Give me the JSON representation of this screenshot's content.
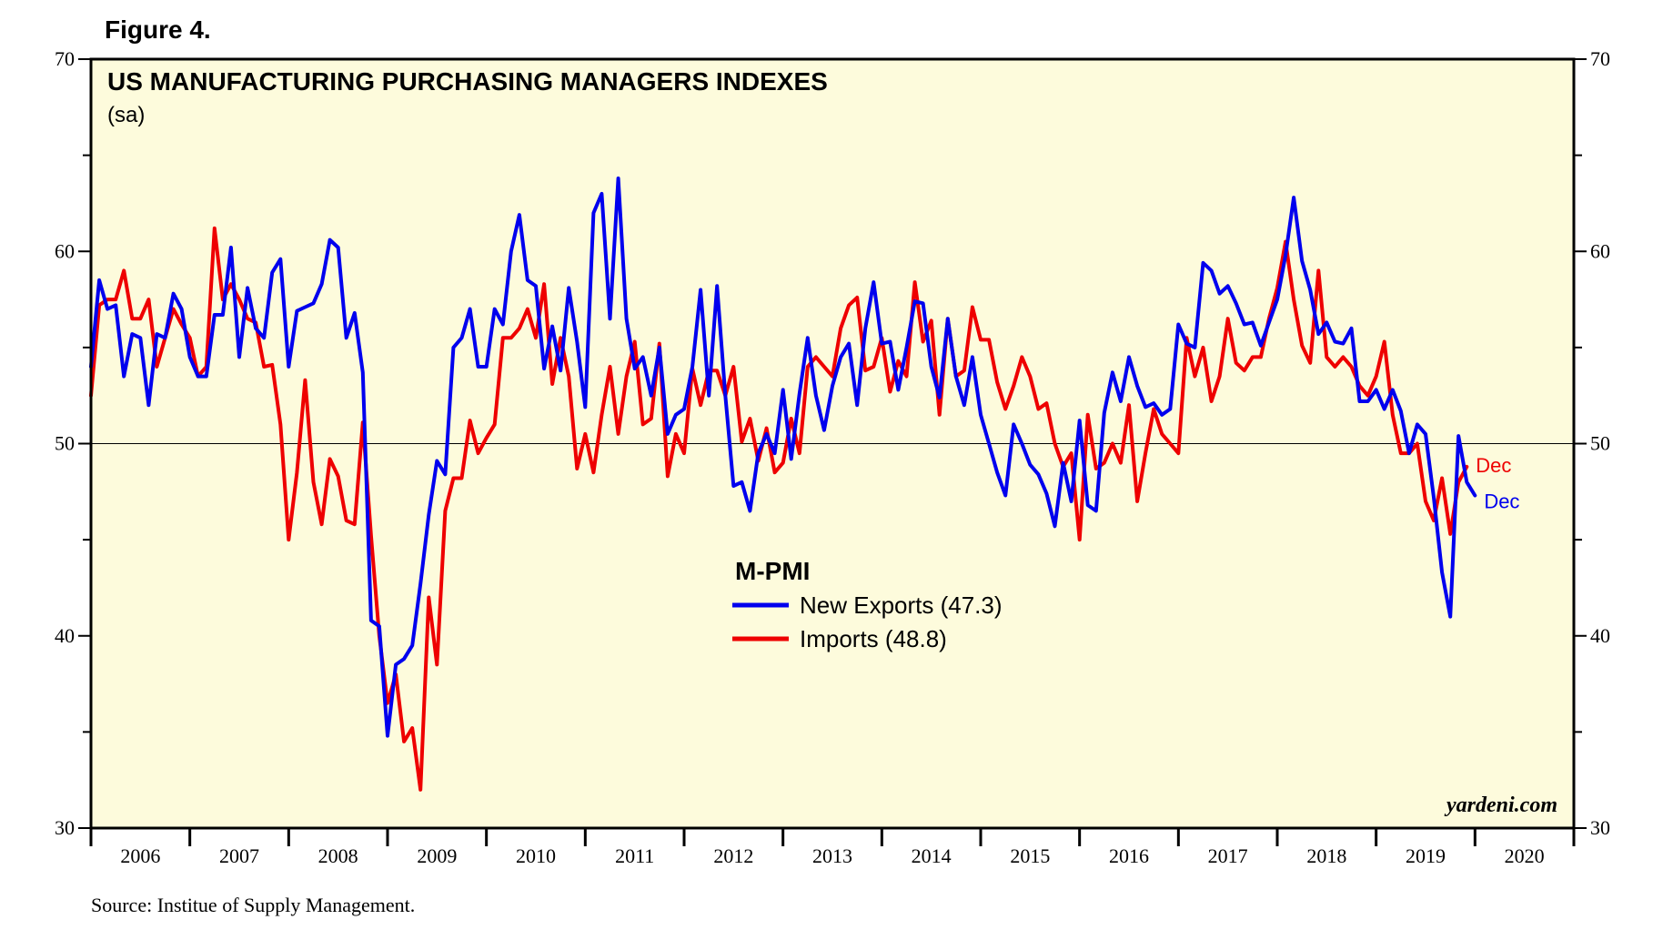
{
  "figure_label": "Figure 4.",
  "source_note": "Source: Institue of Supply Management.",
  "watermark": "yardeni.com",
  "colors": {
    "background": "#fdfbdc",
    "new_exports": "#0000ee",
    "imports": "#ee0000",
    "axis": "#000000"
  },
  "chart_data": {
    "type": "line",
    "title": "US MANUFACTURING PURCHASING MANAGERS INDEXES",
    "subtitle": "(sa)",
    "xlabel": "",
    "ylabel": "",
    "ylim": [
      30,
      70
    ],
    "xlim": [
      2006.0,
      2021.0
    ],
    "y_ticks": [
      30,
      40,
      50,
      60,
      70
    ],
    "year_labels": [
      "2006",
      "2007",
      "2008",
      "2009",
      "2010",
      "2011",
      "2012",
      "2013",
      "2014",
      "2015",
      "2016",
      "2017",
      "2018",
      "2019",
      "2020"
    ],
    "reference_line": 50,
    "grid": false,
    "legend": {
      "title": "M-PMI",
      "position": "center",
      "entries": [
        "New Exports (47.3)",
        "Imports (48.8)"
      ]
    },
    "end_labels": [
      "Dec",
      "Dec"
    ],
    "series": [
      {
        "name": "New Exports",
        "color": "#0000ee",
        "x_start": 2006.0,
        "x_step": 0.083333,
        "values": [
          54.0,
          58.5,
          57.0,
          57.2,
          53.5,
          55.7,
          55.5,
          52.0,
          55.7,
          55.5,
          57.8,
          57.0,
          54.5,
          53.5,
          53.5,
          56.7,
          56.7,
          60.2,
          54.5,
          58.1,
          56.0,
          55.5,
          58.9,
          59.6,
          54.0,
          56.9,
          57.1,
          57.3,
          58.3,
          60.6,
          60.2,
          55.5,
          56.8,
          53.7,
          40.8,
          40.5,
          34.8,
          38.5,
          38.8,
          39.5,
          42.7,
          46.3,
          49.1,
          48.4,
          55.0,
          55.5,
          57.0,
          54.0,
          54.0,
          57.0,
          56.2,
          60.0,
          61.9,
          58.5,
          58.2,
          53.9,
          56.1,
          53.8,
          58.1,
          55.3,
          51.9,
          62.0,
          63.0,
          56.5,
          63.8,
          56.5,
          53.9,
          54.5,
          52.5,
          55.0,
          50.5,
          51.5,
          51.8,
          54.0,
          58.0,
          52.5,
          58.2,
          52.5,
          47.8,
          48.0,
          46.5,
          49.5,
          50.5,
          49.5,
          52.8,
          49.2,
          52.6,
          55.5,
          52.5,
          50.7,
          53.0,
          54.5,
          55.2,
          52.0,
          56.0,
          58.4,
          55.2,
          55.3,
          52.8,
          55.0,
          57.4,
          57.3,
          54.0,
          52.4,
          56.5,
          53.5,
          52.0,
          54.5,
          51.5,
          50.0,
          48.5,
          47.3,
          51.0,
          50.0,
          48.9,
          48.4,
          47.4,
          45.7,
          49.0,
          47.0,
          51.2,
          46.8,
          46.5,
          51.6,
          53.7,
          52.2,
          54.5,
          53.0,
          51.9,
          52.1,
          51.5,
          51.8,
          56.2,
          55.2,
          55.0,
          59.4,
          59.0,
          57.8,
          58.2,
          57.3,
          56.2,
          56.3,
          55.1,
          56.3,
          57.5,
          59.8,
          62.8,
          59.5,
          58.0,
          55.7,
          56.3,
          55.3,
          55.2,
          56.0,
          52.2,
          52.2,
          52.8,
          51.8,
          52.8,
          51.7,
          49.5,
          51.0,
          50.5,
          47.2,
          43.3,
          41.0,
          50.4,
          48.0,
          47.3
        ]
      },
      {
        "name": "Imports",
        "color": "#ee0000",
        "x_start": 2006.0,
        "x_step": 0.083333,
        "values": [
          52.5,
          57.2,
          57.5,
          57.5,
          59.0,
          56.5,
          56.5,
          57.5,
          54.0,
          55.5,
          57.0,
          56.2,
          55.5,
          53.5,
          54.0,
          61.2,
          57.5,
          58.3,
          57.5,
          56.5,
          56.3,
          54.0,
          54.1,
          51.0,
          45.0,
          48.5,
          53.3,
          48.0,
          45.8,
          49.2,
          48.3,
          46.0,
          45.8,
          51.1,
          45.2,
          40.0,
          36.5,
          38.0,
          34.5,
          35.2,
          32.0,
          42.0,
          38.5,
          46.5,
          48.2,
          48.2,
          51.2,
          49.5,
          50.3,
          51.0,
          55.5,
          55.5,
          56.0,
          57.0,
          55.5,
          58.3,
          53.1,
          55.5,
          53.5,
          48.7,
          50.5,
          48.5,
          51.5,
          54.0,
          50.5,
          53.5,
          55.3,
          51.0,
          51.3,
          55.2,
          48.3,
          50.5,
          49.5,
          53.9,
          52.0,
          53.8,
          53.8,
          52.5,
          54.0,
          50.1,
          51.3,
          49.1,
          50.8,
          48.5,
          49.0,
          51.3,
          49.5,
          54.0,
          54.5,
          54.0,
          53.5,
          56.0,
          57.2,
          57.6,
          53.8,
          54.0,
          55.5,
          52.7,
          54.3,
          53.5,
          58.4,
          55.3,
          56.4,
          51.5,
          56.5,
          53.5,
          53.8,
          57.1,
          55.4,
          55.4,
          53.2,
          51.8,
          53.0,
          54.5,
          53.5,
          51.8,
          52.1,
          50.0,
          48.8,
          49.5,
          45.0,
          51.5,
          48.7,
          49.0,
          50.0,
          49.0,
          52.0,
          47.0,
          49.5,
          51.8,
          50.5,
          50.0,
          49.5,
          55.5,
          53.5,
          55.0,
          52.2,
          53.5,
          56.5,
          54.2,
          53.8,
          54.5,
          54.5,
          56.5,
          58.1,
          60.5,
          57.5,
          55.1,
          54.2,
          59.0,
          54.5,
          54.0,
          54.5,
          54.0,
          53.0,
          52.5,
          53.5,
          55.3,
          51.5,
          49.5,
          49.5,
          50.0,
          47.0,
          46.0,
          48.2,
          45.3,
          48.0,
          48.8
        ]
      }
    ]
  }
}
